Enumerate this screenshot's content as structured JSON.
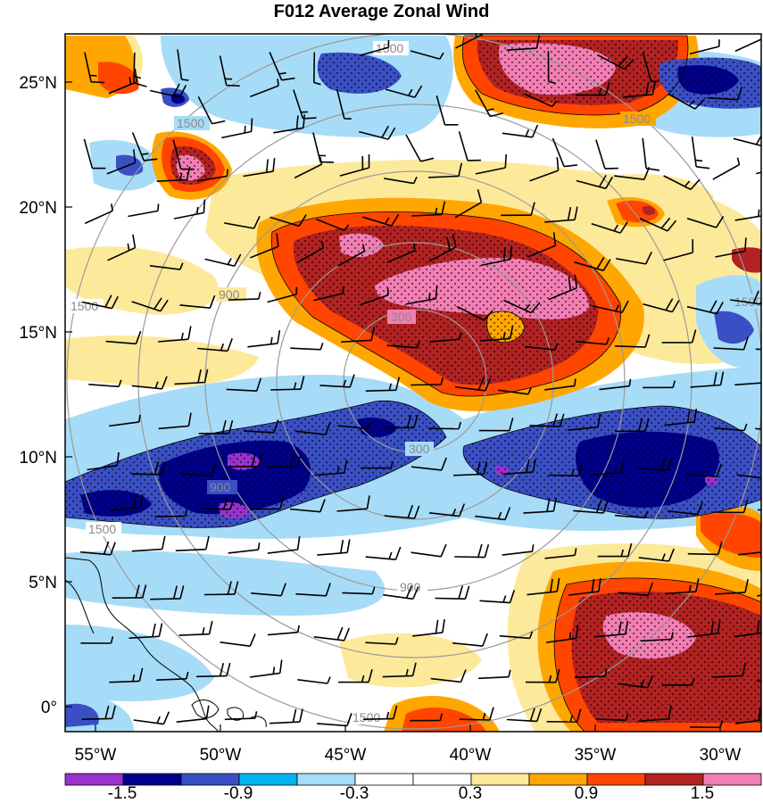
{
  "title": "F012 Average Zonal Wind",
  "lat_labels": [
    "25°N",
    "20°N",
    "15°N",
    "10°N",
    "5°N",
    "0°"
  ],
  "lon_labels": [
    "55°W",
    "50°W",
    "45°W",
    "40°W",
    "35°W",
    "30°W"
  ],
  "colorbar": {
    "colors": [
      "#9932cc",
      "#00008b",
      "#3a4fc4",
      "#00b4f0",
      "#a7dcf8",
      "#ffffff",
      "#ffffff",
      "#fde99a",
      "#ffa600",
      "#ff4500",
      "#b22222",
      "#f27eb4"
    ],
    "labels": [
      "-1.5",
      "-0.9",
      "-0.3",
      "0.3",
      "0.9",
      "1.5"
    ]
  },
  "range_rings": {
    "labels": [
      "300",
      "300",
      "900",
      "900",
      "900",
      "1500",
      "1500",
      "1500",
      "1500",
      "1500",
      "1500",
      "1500"
    ]
  },
  "fill_colors": {
    "strong_positive": "#f27eb4",
    "dark_red": "#b22222",
    "red_orange": "#ff4500",
    "orange": "#ffa600",
    "light_yellow": "#fde99a",
    "light_blue": "#a7dcf8",
    "sky_blue": "#00b4f0",
    "medium_blue": "#3a4fc4",
    "navy": "#00008b",
    "purple": "#9932cc"
  }
}
